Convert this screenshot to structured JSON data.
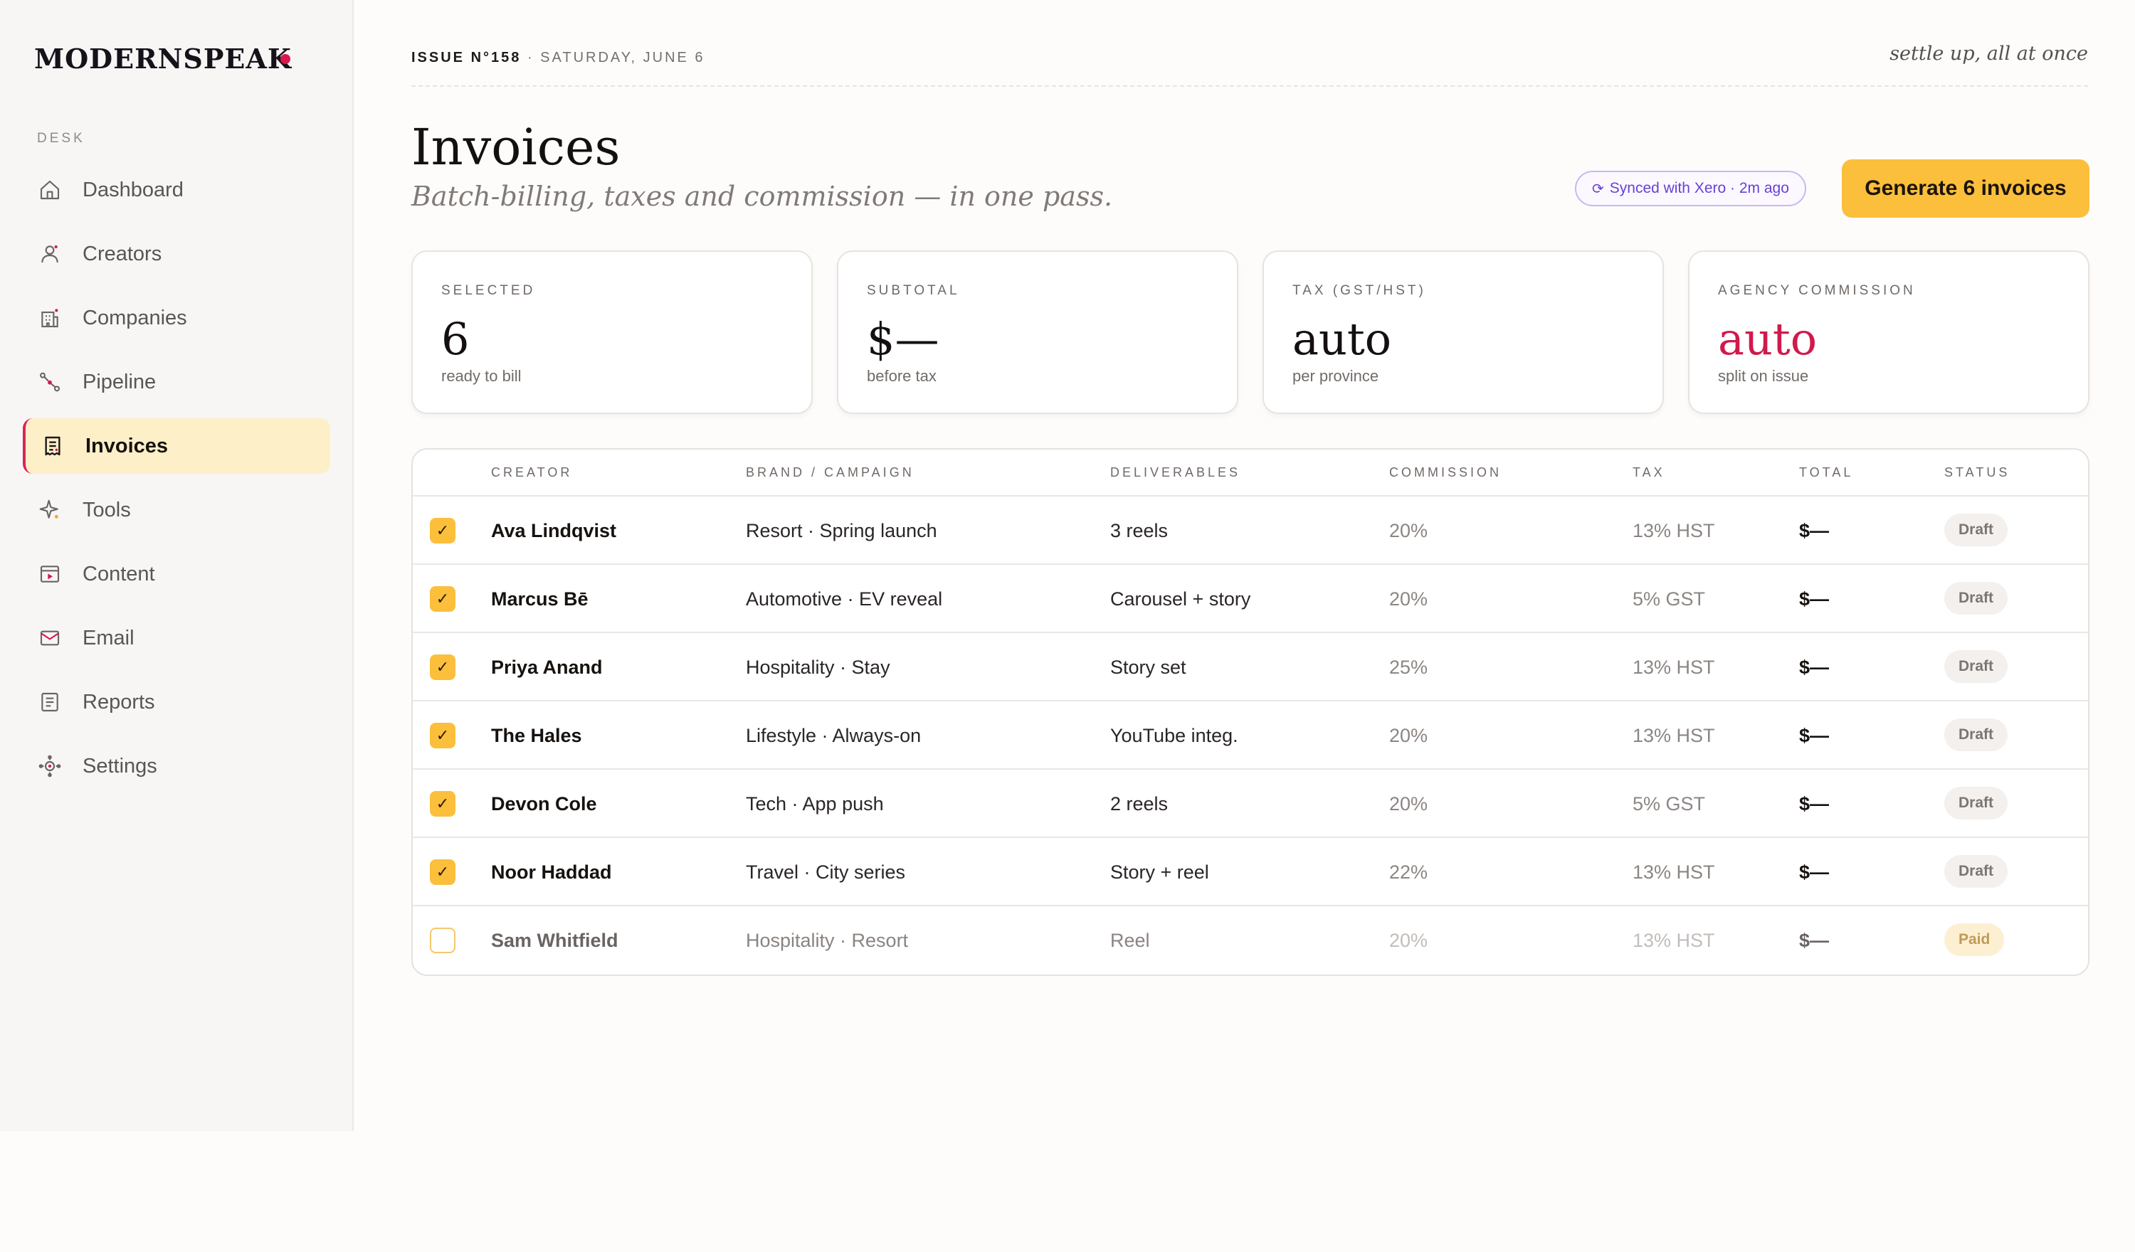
{
  "brand": {
    "name": "MODERNSPEAK",
    "dot_color": "#d7194c"
  },
  "sidebar": {
    "section_label": "DESK",
    "items": [
      {
        "label": "Dashboard",
        "icon": "home-icon",
        "active": false
      },
      {
        "label": "Creators",
        "icon": "user-icon",
        "active": false
      },
      {
        "label": "Companies",
        "icon": "building-icon",
        "active": false
      },
      {
        "label": "Pipeline",
        "icon": "pipeline-icon",
        "active": false
      },
      {
        "label": "Invoices",
        "icon": "receipt-icon",
        "active": true
      },
      {
        "label": "Tools",
        "icon": "sparkle-icon",
        "active": false
      },
      {
        "label": "Content",
        "icon": "video-icon",
        "active": false
      },
      {
        "label": "Email",
        "icon": "mail-icon",
        "active": false
      },
      {
        "label": "Reports",
        "icon": "document-icon",
        "active": false
      },
      {
        "label": "Settings",
        "icon": "settings-icon",
        "active": false
      }
    ]
  },
  "topbar": {
    "issue": "ISSUE N°158",
    "date": " · SATURDAY, JUNE 6",
    "tagline": "settle up, all at once"
  },
  "header": {
    "title": "Invoices",
    "subtitle": "Batch-billing, taxes and commission — in one pass.",
    "sync_icon": "⟳",
    "sync_text": "Synced with Xero · 2m ago",
    "generate_label": "Generate 6 invoices"
  },
  "stats": [
    {
      "label": "SELECTED",
      "value": "6",
      "note": "ready to bill"
    },
    {
      "label": "SUBTOTAL",
      "value": "$—",
      "note": "before tax"
    },
    {
      "label": "TAX (GST/HST)",
      "value": "auto",
      "note": "per province"
    },
    {
      "label": "AGENCY COMMISSION",
      "value": "auto",
      "note": "split on issue"
    }
  ],
  "table": {
    "headers": [
      "CREATOR",
      "BRAND / CAMPAIGN",
      "DELIVERABLES",
      "COMMISSION",
      "TAX",
      "TOTAL",
      "STATUS"
    ],
    "rows": [
      {
        "checked": true,
        "creator": "Ava Lindqvist",
        "campaign": "Resort · Spring launch",
        "deliverables": "3 reels",
        "commission": "20%",
        "tax": "13% HST",
        "total": "$—",
        "status": "Draft"
      },
      {
        "checked": true,
        "creator": "Marcus Bē",
        "campaign": "Automotive · EV reveal",
        "deliverables": "Carousel + story",
        "commission": "20%",
        "tax": "5% GST",
        "total": "$—",
        "status": "Draft"
      },
      {
        "checked": true,
        "creator": "Priya Anand",
        "campaign": "Hospitality · Stay",
        "deliverables": "Story set",
        "commission": "25%",
        "tax": "13% HST",
        "total": "$—",
        "status": "Draft"
      },
      {
        "checked": true,
        "creator": "The Hales",
        "campaign": "Lifestyle · Always-on",
        "deliverables": "YouTube integ.",
        "commission": "20%",
        "tax": "13% HST",
        "total": "$—",
        "status": "Draft"
      },
      {
        "checked": true,
        "creator": "Devon Cole",
        "campaign": "Tech · App push",
        "deliverables": "2 reels",
        "commission": "20%",
        "tax": "5% GST",
        "total": "$—",
        "status": "Draft"
      },
      {
        "checked": true,
        "creator": "Noor Haddad",
        "campaign": "Travel · City series",
        "deliverables": "Story + reel",
        "commission": "22%",
        "tax": "13% HST",
        "total": "$—",
        "status": "Draft"
      },
      {
        "checked": false,
        "creator": "Sam Whitfield",
        "campaign": "Hospitality · Resort",
        "deliverables": "Reel",
        "commission": "20%",
        "tax": "13% HST",
        "total": "$—",
        "status": "Paid"
      }
    ]
  },
  "colors": {
    "accent": "#fbbf3c",
    "brand_red": "#d11a4c",
    "active_nav_bg": "#fdefc8",
    "sync_purple": "#6b3fd6"
  }
}
